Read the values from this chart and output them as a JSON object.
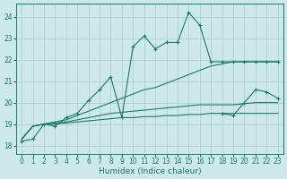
{
  "xlabel": "Humidex (Indice chaleur)",
  "bg_color": "#cce8e8",
  "grid_color": "#aacccc",
  "line_color": "#1a7a6a",
  "x_ticks": [
    0,
    1,
    2,
    3,
    4,
    5,
    6,
    7,
    8,
    9,
    10,
    11,
    12,
    13,
    14,
    15,
    16,
    17,
    18,
    19,
    20,
    21,
    22,
    23
  ],
  "y_ticks": [
    18,
    19,
    20,
    21,
    22,
    23,
    24
  ],
  "ylim": [
    17.6,
    24.6
  ],
  "xlim": [
    -0.5,
    23.5
  ],
  "series": {
    "line1": {
      "x": [
        0,
        1,
        2,
        3,
        4,
        5,
        6,
        7,
        8,
        9,
        10,
        11,
        12,
        13,
        14,
        15,
        16,
        17,
        18,
        19,
        20,
        21,
        22,
        23
      ],
      "y": [
        18.2,
        18.3,
        19.0,
        18.9,
        19.3,
        19.5,
        20.1,
        20.6,
        21.2,
        19.3,
        22.6,
        23.1,
        22.5,
        22.8,
        22.8,
        24.2,
        23.6,
        21.9,
        21.9,
        21.9,
        21.9,
        21.9,
        21.9,
        21.9
      ]
    },
    "line2": {
      "x": [
        0,
        1,
        2,
        3,
        4,
        5,
        6,
        7,
        8,
        9,
        10,
        11,
        12,
        13,
        14,
        15,
        16,
        17,
        18,
        19,
        20,
        21,
        22,
        23
      ],
      "y": [
        18.3,
        18.9,
        19.0,
        19.1,
        19.2,
        19.4,
        19.6,
        19.8,
        20.0,
        20.2,
        20.4,
        20.6,
        20.7,
        20.9,
        21.1,
        21.3,
        21.5,
        21.7,
        21.8,
        21.9,
        21.9,
        21.9,
        21.9,
        21.9
      ]
    },
    "line3": {
      "x": [
        0,
        1,
        2,
        3,
        4,
        5,
        6,
        7,
        8,
        9,
        10,
        11,
        12,
        13,
        14,
        15,
        16,
        17,
        18,
        19,
        20,
        21,
        22,
        23
      ],
      "y": [
        18.3,
        18.9,
        19.0,
        19.05,
        19.1,
        19.2,
        19.3,
        19.4,
        19.5,
        19.55,
        19.6,
        19.65,
        19.7,
        19.75,
        19.8,
        19.85,
        19.9,
        19.9,
        19.9,
        19.9,
        19.95,
        20.0,
        20.0,
        20.0
      ]
    },
    "line4": {
      "x": [
        0,
        1,
        2,
        3,
        4,
        5,
        6,
        7,
        8,
        9,
        10,
        11,
        12,
        13,
        14,
        15,
        16,
        17,
        18,
        19,
        20,
        21,
        22,
        23
      ],
      "y": [
        18.3,
        18.9,
        19.0,
        19.0,
        19.05,
        19.1,
        19.15,
        19.2,
        19.25,
        19.3,
        19.3,
        19.35,
        19.35,
        19.4,
        19.4,
        19.45,
        19.45,
        19.5,
        19.5,
        19.5,
        19.5,
        19.5,
        19.5,
        19.5
      ]
    },
    "line5": {
      "x": [
        18,
        19,
        20,
        21,
        22,
        23
      ],
      "y": [
        19.5,
        19.4,
        20.0,
        20.6,
        20.5,
        20.2
      ]
    }
  }
}
